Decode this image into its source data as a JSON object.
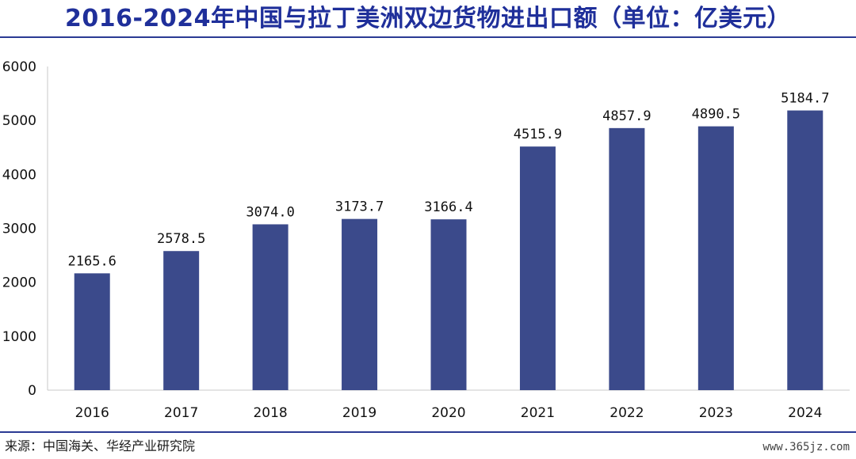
{
  "title": "2016-2024年中国与拉丁美洲双边货物进出口额（单位：亿美元）",
  "source": "来源：中国海关、华经产业研究院",
  "watermark": "www.365jz.com",
  "colors": {
    "bar": "#3b4a8b",
    "title": "#1f2f9a",
    "rule": "#2a3a93",
    "axis": "#c9c9c9"
  },
  "chart_data": {
    "type": "bar",
    "categories": [
      "2016",
      "2017",
      "2018",
      "2019",
      "2020",
      "2021",
      "2022",
      "2023",
      "2024"
    ],
    "values": [
      2165.6,
      2578.5,
      3074.0,
      3173.7,
      3166.4,
      4515.9,
      4857.9,
      4890.5,
      5184.7
    ],
    "data_labels": [
      "2165.6",
      "2578.5",
      "3074.0",
      "3173.7",
      "3166.4",
      "4515.9",
      "4857.9",
      "4890.5",
      "5184.7"
    ],
    "ylim": [
      0,
      6000
    ],
    "yticks": [
      0,
      1000,
      2000,
      3000,
      4000,
      5000,
      6000
    ],
    "ytick_labels": [
      "0",
      "1000",
      "2000",
      "3000",
      "4000",
      "5000",
      "6000"
    ],
    "grid": false,
    "legend": "none"
  }
}
